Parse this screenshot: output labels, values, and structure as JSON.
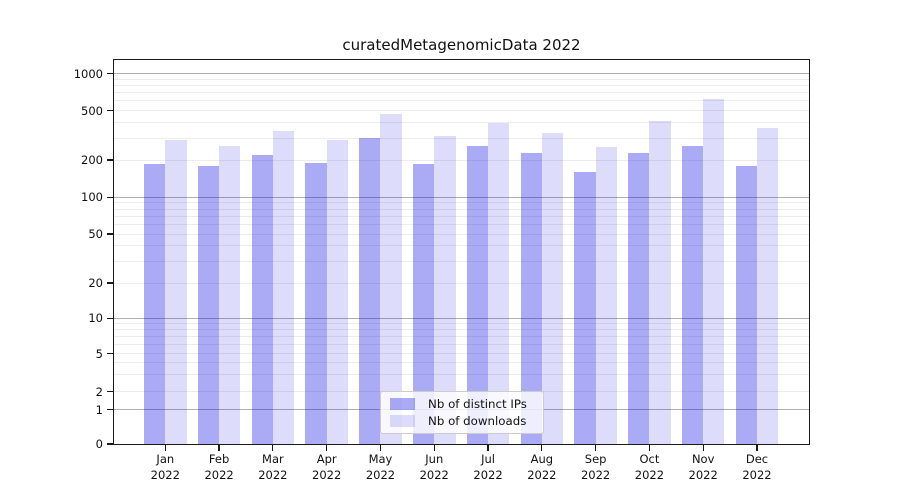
{
  "chart_data": {
    "type": "bar",
    "title": "curatedMetagenomicData 2022",
    "categories": [
      "Jan",
      "Feb",
      "Mar",
      "Apr",
      "May",
      "Jun",
      "Jul",
      "Aug",
      "Sep",
      "Oct",
      "Nov",
      "Dec"
    ],
    "year_label": "2022",
    "x_tick_labels": [
      "Jan 2022",
      "Feb 2022",
      "Mar 2022",
      "Apr 2022",
      "May 2022",
      "Jun 2022",
      "Jul 2022",
      "Aug 2022",
      "Sep 2022",
      "Oct 2022",
      "Nov 2022",
      "Dec 2022"
    ],
    "series": [
      {
        "name": "Nb of distinct IPs",
        "color": "rgba(15,15,225,0.35)",
        "values": [
          187,
          180,
          218,
          190,
          303,
          184,
          259,
          226,
          159,
          226,
          260,
          178
        ]
      },
      {
        "name": "Nb of downloads",
        "color": "rgba(15,15,225,0.14)",
        "values": [
          292,
          260,
          340,
          291,
          468,
          312,
          400,
          331,
          256,
          411,
          622,
          365
        ]
      }
    ],
    "yscale": "symlog",
    "ylim": [
      0,
      1300
    ],
    "ytick_labels": [
      "0",
      "1",
      "2",
      "5",
      "10",
      "20",
      "50",
      "100",
      "200",
      "500",
      "1000"
    ],
    "grid": true,
    "legend_position": "lower center",
    "xlabel": "",
    "ylabel": ""
  },
  "colors": {
    "background": "#ffffff",
    "axis": "#1a1a1a",
    "major_grid": "#b0b0b0",
    "minor_grid": "#ececec",
    "legend_border": "#cccccc",
    "legend_background": "rgba(255,255,255,0.8)",
    "title_text": "#111111"
  }
}
